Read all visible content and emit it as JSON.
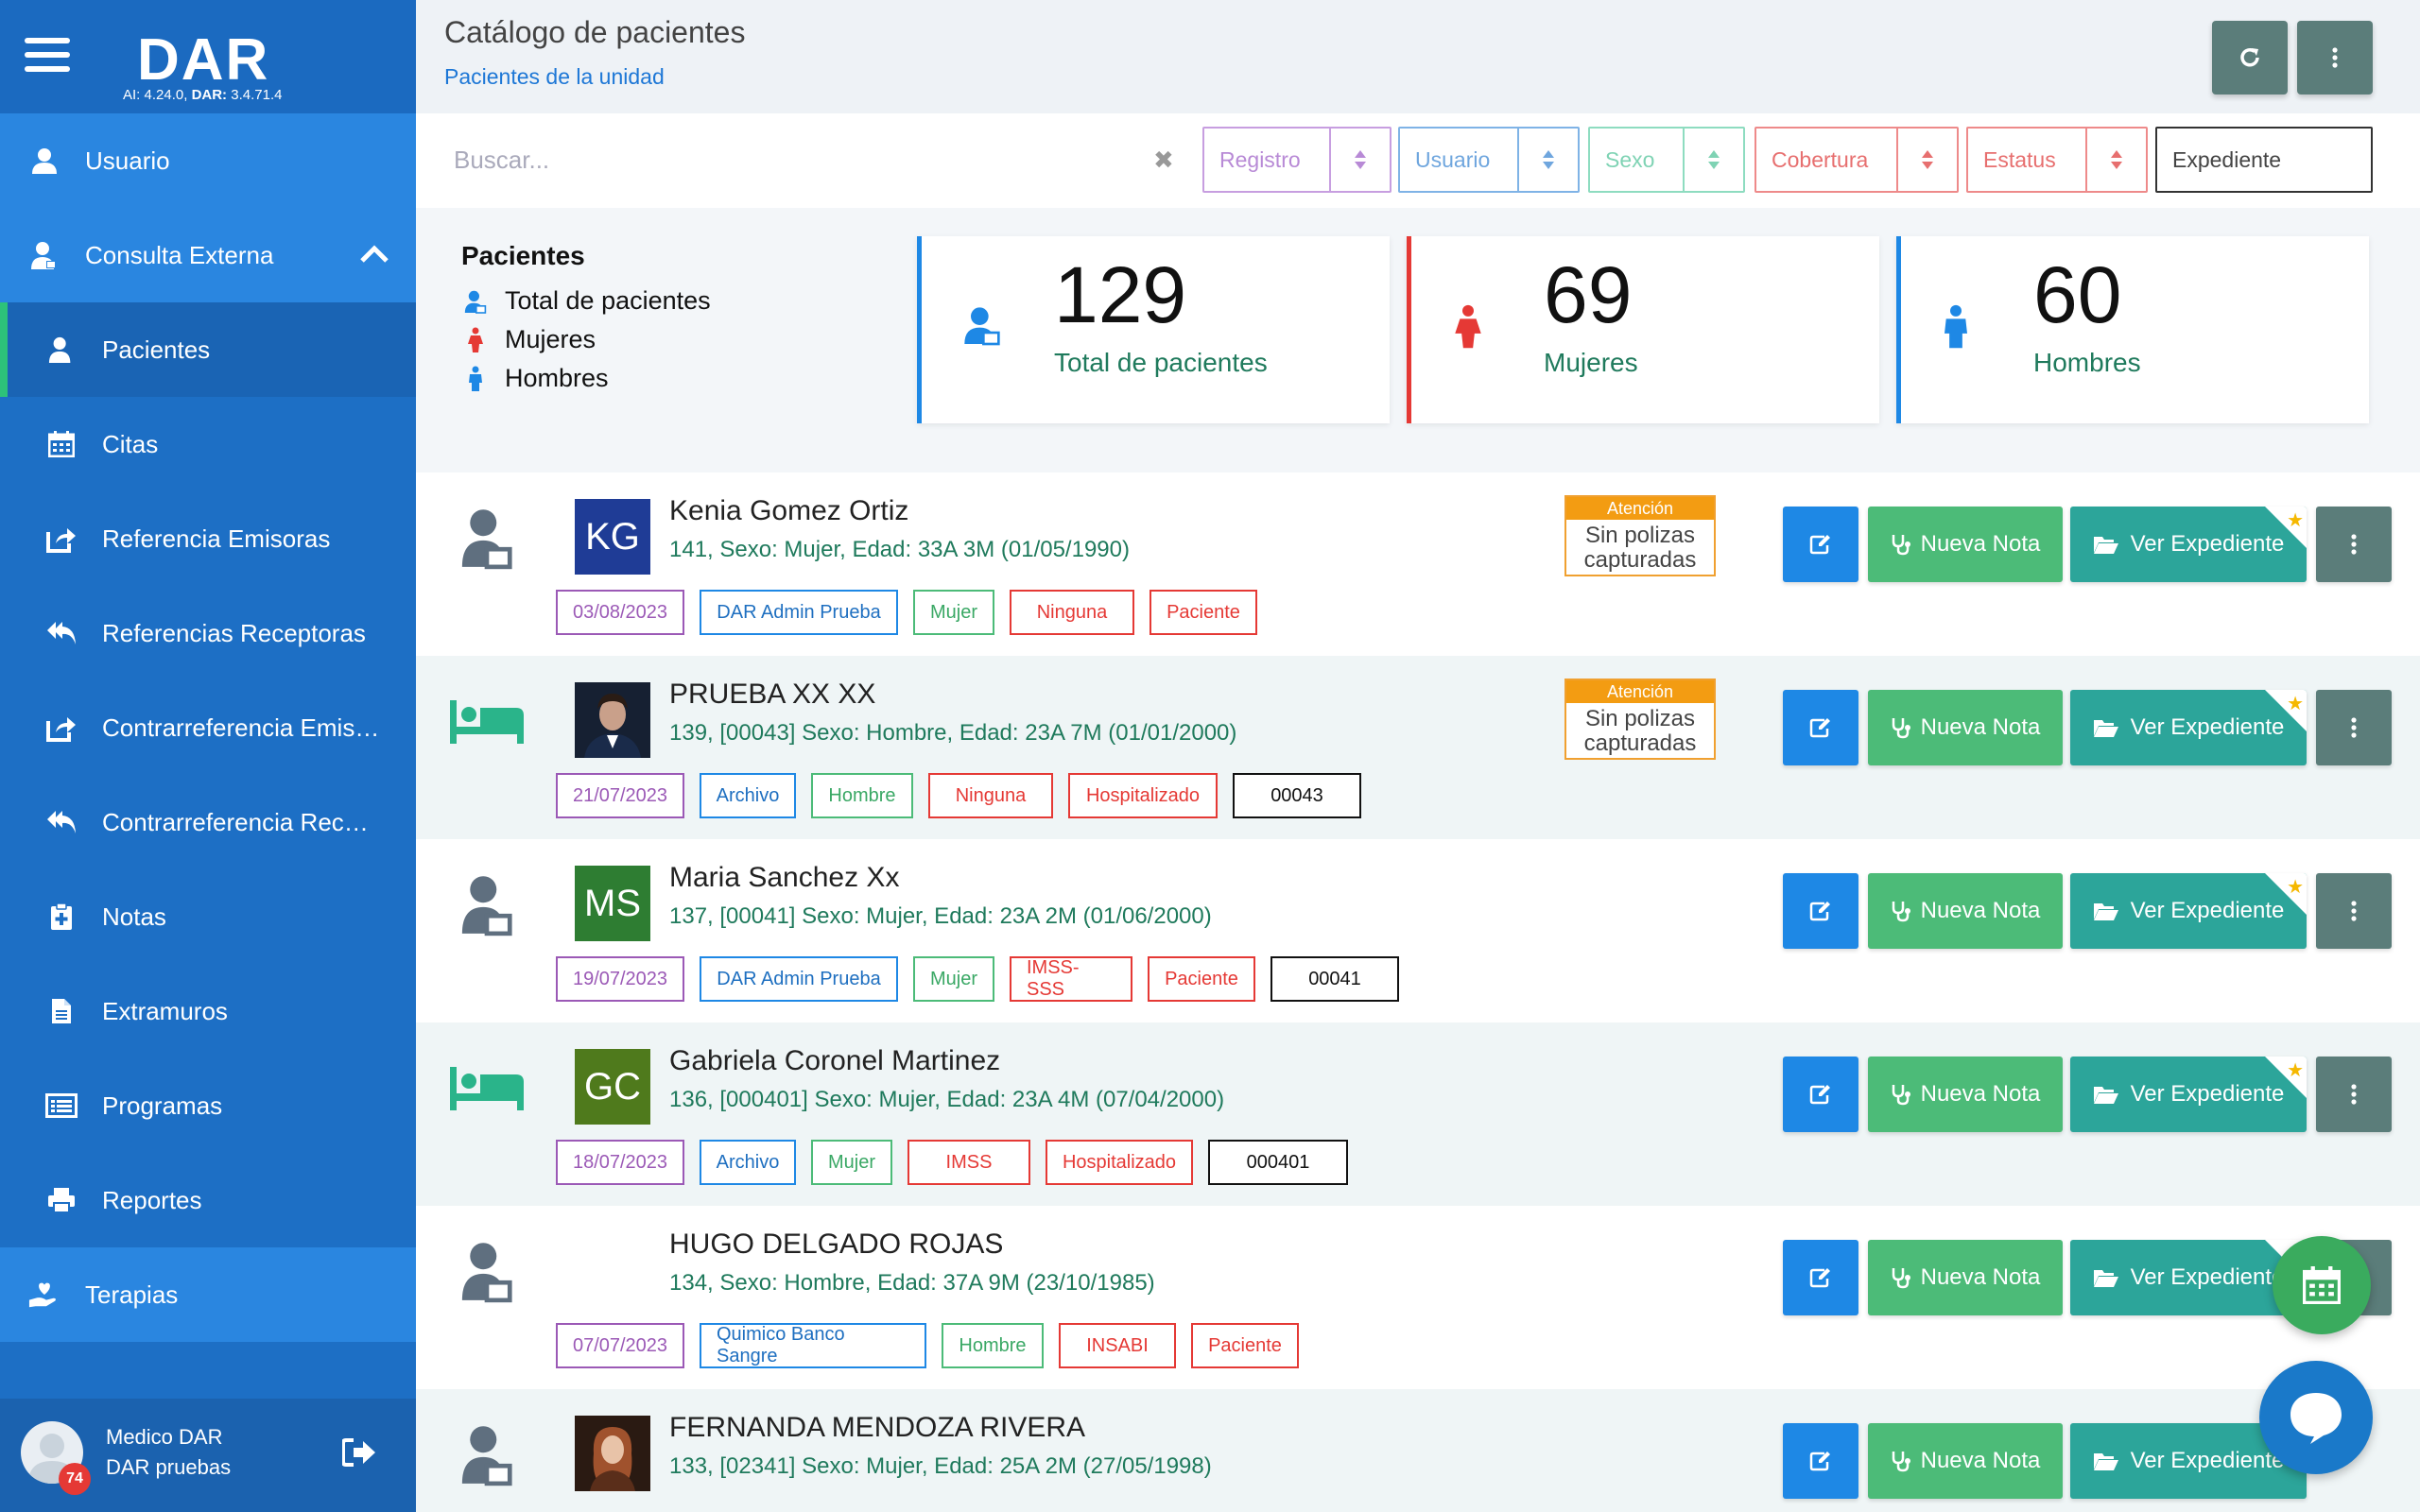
{
  "app": {
    "logo": "DAR",
    "version_prefix_ai": "AI:",
    "version_ai": "4.24.0,",
    "version_prefix_dar": "DAR:",
    "version_dar": "3.4.71.4"
  },
  "sidebar": {
    "usuario": "Usuario",
    "consulta": "Consulta Externa",
    "items": [
      "Pacientes",
      "Citas",
      "Referencia Emisoras",
      "Referencias Receptoras",
      "Contrarreferencia Emis…",
      "Contrarreferencia Rec…",
      "Notas",
      "Extramuros",
      "Programas",
      "Reportes"
    ],
    "terapias": "Terapias"
  },
  "user": {
    "name": "Medico DAR",
    "unit": "DAR pruebas",
    "badge": "74"
  },
  "header": {
    "title": "Catálogo de pacientes",
    "subtitle": "Pacientes de la unidad"
  },
  "filters": {
    "search_placeholder": "Buscar...",
    "clear": "✖",
    "registro": "Registro",
    "usuario": "Usuario",
    "sexo": "Sexo",
    "cobertura": "Cobertura",
    "estatus": "Estatus",
    "expediente": "Expediente"
  },
  "legend": {
    "title": "Pacientes",
    "total": "Total de pacientes",
    "mujeres": "Mujeres",
    "hombres": "Hombres"
  },
  "stats": {
    "total": {
      "value": "129",
      "label": "Total de pacientes"
    },
    "mujeres": {
      "value": "69",
      "label": "Mujeres"
    },
    "hombres": {
      "value": "60",
      "label": "Hombres"
    }
  },
  "actions": {
    "nueva_nota": "Nueva Nota",
    "ver_expediente": "Ver Expediente"
  },
  "attention": {
    "header": "Atención",
    "line1": "Sin polizas",
    "line2": "capturadas"
  },
  "patients": [
    {
      "initials": "KG",
      "name": "Kenia Gomez Ortiz",
      "info": "141, Sexo: Mujer, Edad: 33A 3M (01/05/1990)",
      "tags": [
        "03/08/2023",
        "DAR Admin Prueba",
        "Mujer",
        "Ninguna",
        "Paciente"
      ]
    },
    {
      "initials": "",
      "name": "PRUEBA XX XX",
      "info": "139, [00043] Sexo: Hombre, Edad: 23A 7M (01/01/2000)",
      "tags": [
        "21/07/2023",
        "Archivo",
        "Hombre",
        "Ninguna",
        "Hospitalizado",
        "00043"
      ]
    },
    {
      "initials": "MS",
      "name": "Maria Sanchez Xx",
      "info": "137, [00041] Sexo: Mujer, Edad: 23A 2M (01/06/2000)",
      "tags": [
        "19/07/2023",
        "DAR Admin Prueba",
        "Mujer",
        "IMSS-SSS",
        "Paciente",
        "00041"
      ]
    },
    {
      "initials": "GC",
      "name": "Gabriela Coronel Martinez",
      "info": "136, [000401] Sexo: Mujer, Edad: 23A 4M (07/04/2000)",
      "tags": [
        "18/07/2023",
        "Archivo",
        "Mujer",
        "IMSS",
        "Hospitalizado",
        "000401"
      ]
    },
    {
      "initials": "",
      "name": "HUGO DELGADO ROJAS",
      "info": "134, Sexo: Hombre, Edad: 37A 9M (23/10/1985)",
      "tags": [
        "07/07/2023",
        "Quimico Banco Sangre",
        "Hombre",
        "INSABI",
        "Paciente"
      ]
    },
    {
      "initials": "",
      "name": "FERNANDA MENDOZA RIVERA",
      "info": "133, [02341] Sexo: Mujer, Edad: 25A 2M (27/05/1998)",
      "tags": []
    }
  ],
  "colors": {
    "sidebar": "#1d6fc5",
    "green": "#4cbb78",
    "teal": "#2ca59a",
    "blue": "#1e88e5",
    "gray": "#5b7d7a",
    "orange": "#f39c12"
  }
}
